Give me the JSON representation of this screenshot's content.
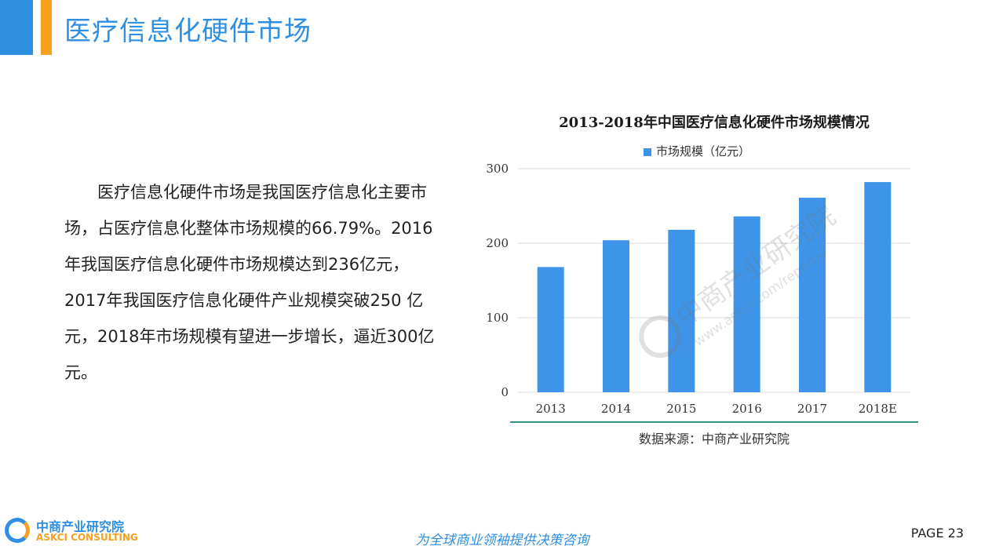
{
  "header": {
    "title": "医疗信息化硬件市场"
  },
  "paragraph": "医疗信息化硬件市场是我国医疗信息化主要市场，占医疗信息化整体市场规模的66.79%。2016年我国医疗信息化硬件市场规模达到236亿元，2017年我国医疗信息化硬件产业规模突破250 亿元，2018年市场规模有望进一步增长，逼近300亿元。",
  "chart_data": {
    "type": "bar",
    "title": "2013-2018年中国医疗信息化硬件市场规模情况",
    "categories": [
      "2013",
      "2014",
      "2015",
      "2016",
      "2017",
      "2018E"
    ],
    "series": [
      {
        "name": "市场规模（亿元）",
        "values": [
          168,
          204,
          218,
          236,
          261,
          282
        ]
      }
    ],
    "yticks": [
      "0",
      "100",
      "200",
      "300"
    ],
    "ylim": [
      0,
      300
    ],
    "grid": true,
    "legend_position": "top",
    "bar_color": "#3d94e8"
  },
  "source": "数据来源：中商产业研究院",
  "watermark": {
    "name": "中商产业研究院",
    "url": "www.askci.com/reports/"
  },
  "footer": {
    "logo_cn": "中商产业研究院",
    "logo_en": "ASKCI CONSULTING",
    "slogan": "为全球商业领袖提供决策咨询",
    "page": "PAGE  23"
  },
  "colors": {
    "accent_blue": "#2f8fe0",
    "accent_orange": "#f5a11f",
    "rule": "#3a8f8a"
  }
}
